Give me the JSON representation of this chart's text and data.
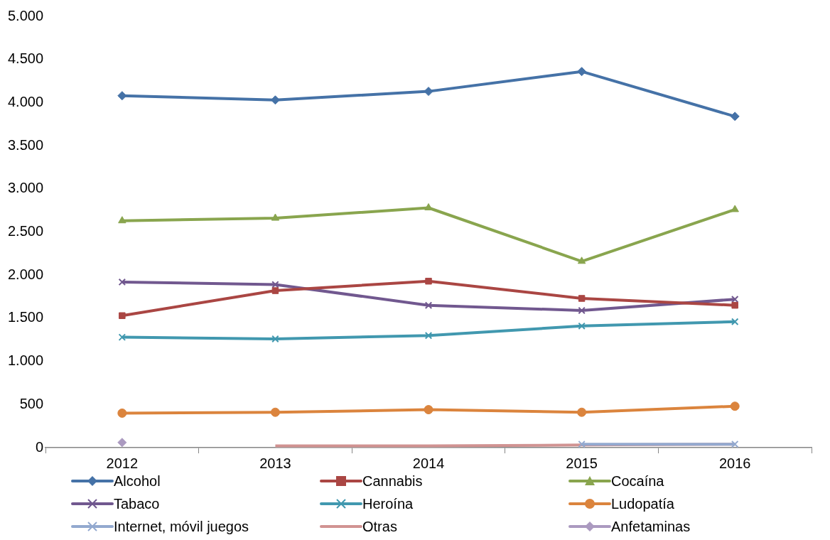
{
  "chart_data": {
    "type": "line",
    "categories": [
      "2012",
      "2013",
      "2014",
      "2015",
      "2016"
    ],
    "ylim": [
      0,
      5000
    ],
    "yticks": [
      {
        "value": 0,
        "label": "0"
      },
      {
        "value": 500,
        "label": "500"
      },
      {
        "value": 1000,
        "label": "1.000"
      },
      {
        "value": 1500,
        "label": "1.500"
      },
      {
        "value": 2000,
        "label": "2.000"
      },
      {
        "value": 2500,
        "label": "2.500"
      },
      {
        "value": 3000,
        "label": "3.000"
      },
      {
        "value": 3500,
        "label": "3.500"
      },
      {
        "value": 4000,
        "label": "4.000"
      },
      {
        "value": 4500,
        "label": "4.500"
      },
      {
        "value": 5000,
        "label": "5.000"
      }
    ],
    "grid": false,
    "legend": "bottom",
    "line_style": "solid",
    "series": [
      {
        "name": "Alcohol",
        "color": "#4572a7",
        "marker": "diamond",
        "values": [
          4080,
          4030,
          4130,
          4360,
          3840
        ]
      },
      {
        "name": "Cannabis",
        "color": "#aa4643",
        "marker": "square",
        "values": [
          1530,
          1820,
          1930,
          1730,
          1650
        ]
      },
      {
        "name": "Cocaína",
        "color": "#89a54e",
        "marker": "triangle",
        "values": [
          2630,
          2660,
          2780,
          2160,
          2760
        ]
      },
      {
        "name": "Tabaco",
        "color": "#71588f",
        "marker": "cross",
        "values": [
          1920,
          1890,
          1650,
          1590,
          1720
        ]
      },
      {
        "name": "Heroína",
        "color": "#4198af",
        "marker": "cross",
        "values": [
          1280,
          1260,
          1300,
          1410,
          1460
        ]
      },
      {
        "name": "Ludopatía",
        "color": "#db843d",
        "marker": "circle",
        "values": [
          400,
          410,
          440,
          410,
          480
        ]
      },
      {
        "name": "Internet, móvil juegos",
        "color": "#93a9cf",
        "marker": "cross",
        "values": [
          null,
          null,
          null,
          40,
          40
        ]
      },
      {
        "name": "Otras",
        "color": "#d19392",
        "marker": "none",
        "values": [
          null,
          20,
          20,
          30,
          40
        ]
      },
      {
        "name": "Anfetaminas",
        "color": "#ab9ac0",
        "marker": "diamond",
        "values": [
          60,
          null,
          null,
          null,
          null
        ]
      }
    ]
  }
}
